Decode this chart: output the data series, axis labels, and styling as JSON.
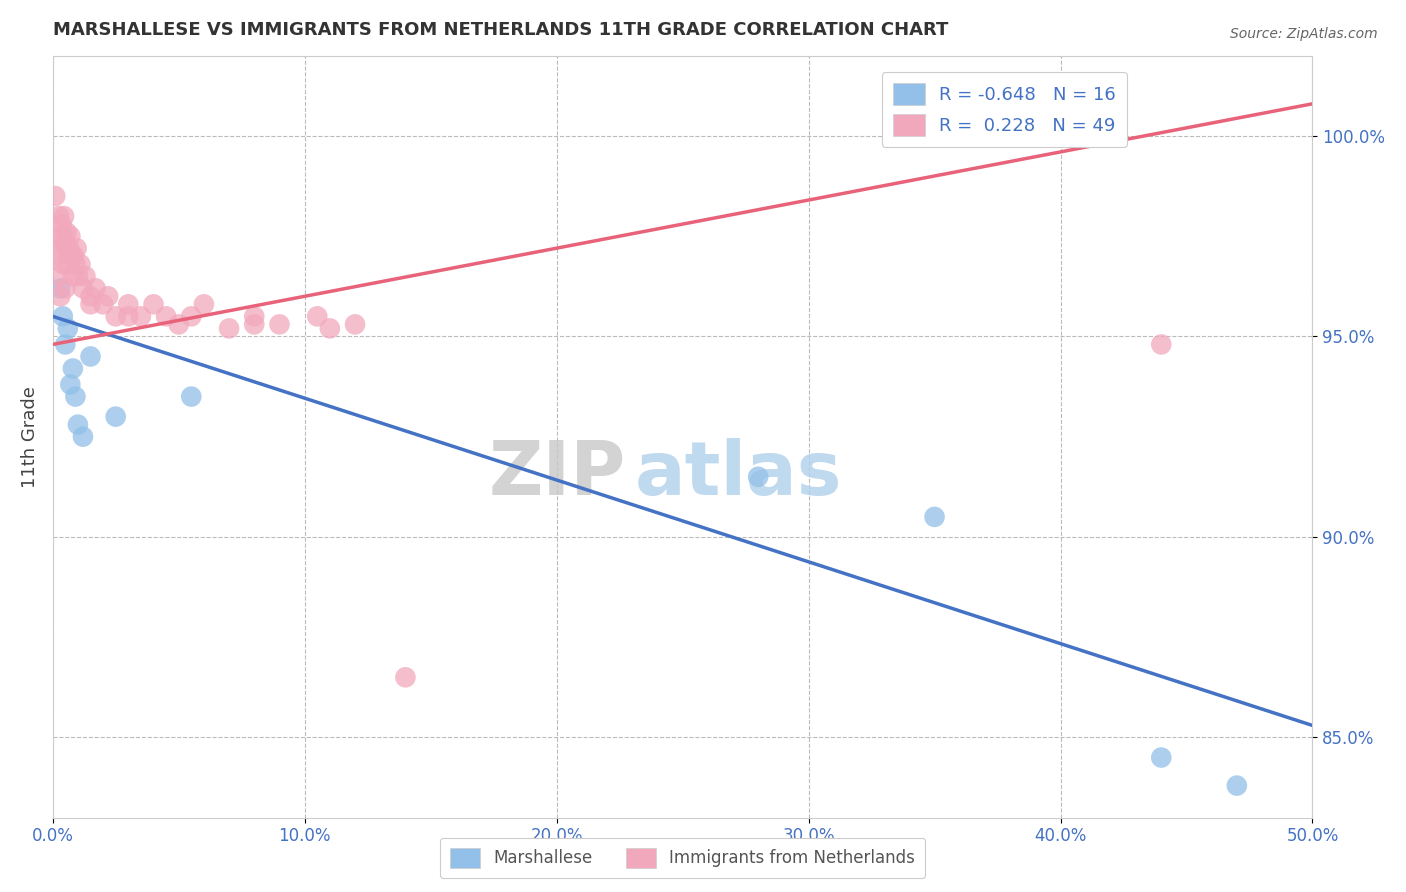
{
  "title": "MARSHALLESE VS IMMIGRANTS FROM NETHERLANDS 11TH GRADE CORRELATION CHART",
  "source": "Source: ZipAtlas.com",
  "ylabel": "11th Grade",
  "xlim": [
    0.0,
    50.0
  ],
  "ylim": [
    83.0,
    102.0
  ],
  "xtick_labels": [
    "0.0%",
    "10.0%",
    "20.0%",
    "30.0%",
    "40.0%",
    "50.0%"
  ],
  "xtick_values": [
    0.0,
    10.0,
    20.0,
    30.0,
    40.0,
    50.0
  ],
  "ytick_labels": [
    "85.0%",
    "90.0%",
    "95.0%",
    "100.0%"
  ],
  "ytick_values": [
    85.0,
    90.0,
    95.0,
    100.0
  ],
  "blue_color": "#92C0E8",
  "pink_color": "#F2A8BC",
  "blue_line_color": "#4472C4",
  "pink_line_color": "#E8637A",
  "legend_R_blue": "-0.648",
  "legend_N_blue": "16",
  "legend_R_pink": "0.228",
  "legend_N_pink": "49",
  "legend_label_blue": "Marshallese",
  "legend_label_pink": "Immigrants from Netherlands",
  "watermark_zip": "ZIP",
  "watermark_atlas": "atlas",
  "blue_scatter_x": [
    0.3,
    0.4,
    0.5,
    0.6,
    0.7,
    0.8,
    0.9,
    1.0,
    1.2,
    1.5,
    2.5,
    5.5,
    28.0,
    35.0,
    44.0,
    47.0
  ],
  "blue_scatter_y": [
    96.2,
    95.5,
    94.8,
    95.2,
    93.8,
    94.2,
    93.5,
    92.8,
    92.5,
    94.5,
    93.0,
    93.5,
    91.5,
    90.5,
    84.5,
    83.8
  ],
  "pink_scatter_x": [
    0.1,
    0.15,
    0.2,
    0.25,
    0.3,
    0.35,
    0.4,
    0.45,
    0.5,
    0.55,
    0.6,
    0.65,
    0.7,
    0.75,
    0.8,
    0.85,
    0.9,
    0.95,
    1.0,
    1.1,
    1.2,
    1.3,
    1.5,
    1.7,
    2.0,
    2.2,
    2.5,
    3.0,
    3.5,
    4.0,
    4.5,
    5.0,
    5.5,
    6.0,
    7.0,
    8.0,
    9.0,
    10.5,
    11.0,
    12.0,
    3.0,
    8.0,
    0.3,
    0.2,
    0.4,
    0.5,
    1.5,
    14.0,
    44.0
  ],
  "pink_scatter_y": [
    98.5,
    97.5,
    97.0,
    98.0,
    97.2,
    97.8,
    97.5,
    98.0,
    97.3,
    97.6,
    96.8,
    97.2,
    97.5,
    97.0,
    96.5,
    97.0,
    96.8,
    97.2,
    96.5,
    96.8,
    96.2,
    96.5,
    96.0,
    96.2,
    95.8,
    96.0,
    95.5,
    95.8,
    95.5,
    95.8,
    95.5,
    95.3,
    95.5,
    95.8,
    95.2,
    95.5,
    95.3,
    95.5,
    95.2,
    95.3,
    95.5,
    95.3,
    96.0,
    96.5,
    96.8,
    96.2,
    95.8,
    86.5,
    94.8
  ],
  "blue_line_x": [
    0.0,
    50.0
  ],
  "blue_line_y": [
    95.5,
    85.3
  ],
  "pink_line_x": [
    0.0,
    50.0
  ],
  "pink_line_y": [
    94.8,
    100.8
  ],
  "background_color": "#FFFFFF",
  "grid_color": "#BBBBBB",
  "title_color": "#333333",
  "axis_label_color": "#444444",
  "tick_color": "#4472C4"
}
